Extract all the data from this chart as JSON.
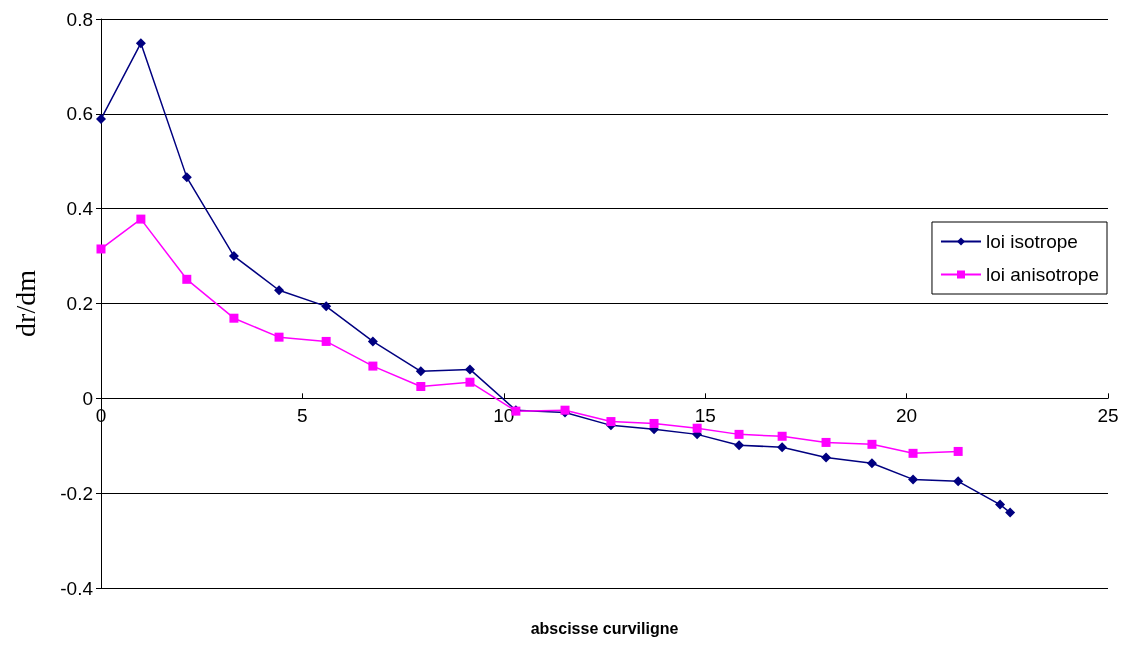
{
  "chart_data": {
    "type": "line",
    "xlabel": "abscisse curviligne",
    "ylabel": "dr/dm",
    "xlim": [
      0,
      25
    ],
    "xticks": [
      0,
      5,
      10,
      15,
      20,
      25
    ],
    "ylim": [
      -0.4,
      0.8
    ],
    "yticks": [
      -0.4,
      -0.2,
      0,
      0.2,
      0.4,
      0.6,
      0.8
    ],
    "grid": "y",
    "legend": "right",
    "line_style": "solid",
    "series": [
      {
        "name": "loi isotrope",
        "color": "#000080",
        "marker": "diamond",
        "x": [
          0,
          0.99,
          2.13,
          3.3,
          4.42,
          5.59,
          6.75,
          7.94,
          9.16,
          10.3,
          11.52,
          12.66,
          13.73,
          14.8,
          15.84,
          16.91,
          18.0,
          19.14,
          20.16,
          21.28,
          22.32,
          22.57
        ],
        "values": [
          0.589,
          0.749,
          0.466,
          0.3,
          0.228,
          0.194,
          0.12,
          0.057,
          0.061,
          -0.025,
          -0.03,
          -0.057,
          -0.065,
          -0.076,
          -0.099,
          -0.103,
          -0.125,
          -0.137,
          -0.171,
          -0.175,
          -0.224,
          -0.241
        ]
      },
      {
        "name": "loi anisotrope",
        "color": "#ff00ff",
        "marker": "square",
        "x": [
          0,
          0.99,
          2.13,
          3.3,
          4.42,
          5.59,
          6.75,
          7.94,
          9.16,
          10.3,
          11.52,
          12.66,
          13.73,
          14.8,
          15.84,
          16.91,
          18.0,
          19.14,
          20.16,
          21.28
        ],
        "values": [
          0.315,
          0.378,
          0.251,
          0.169,
          0.129,
          0.12,
          0.068,
          0.025,
          0.034,
          -0.027,
          -0.025,
          -0.049,
          -0.053,
          -0.063,
          -0.076,
          -0.08,
          -0.093,
          -0.097,
          -0.116,
          -0.112
        ]
      }
    ]
  }
}
